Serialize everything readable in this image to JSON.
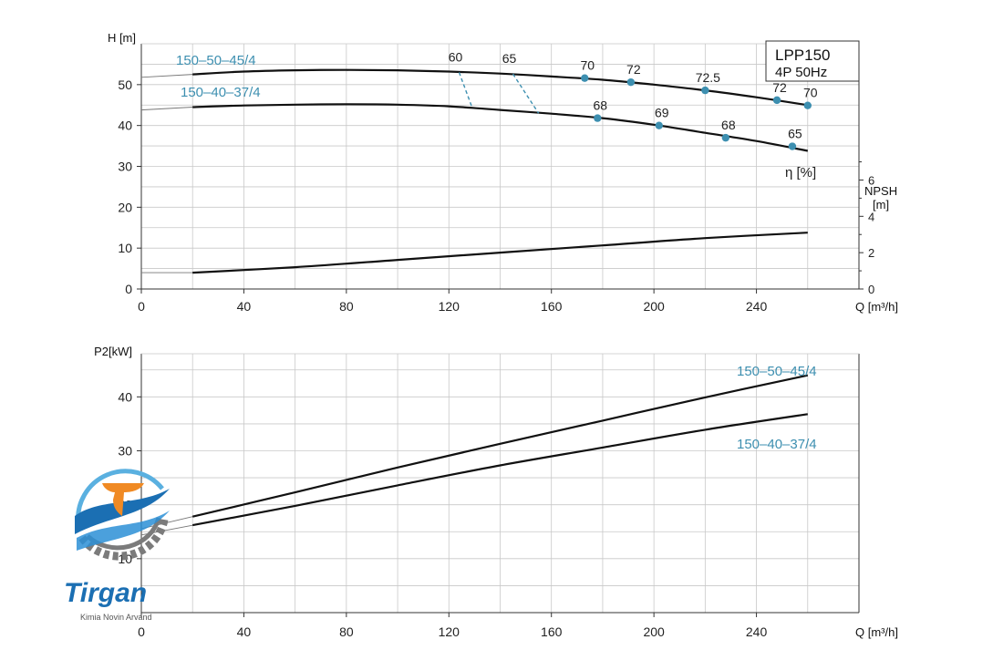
{
  "chart_data": [
    {
      "type": "line",
      "title": "",
      "model_box": {
        "line1": "LPP150",
        "line2": "4P  50Hz"
      },
      "xlabel": "Q [m³/h]",
      "ylabel": "H [m]",
      "y2label_line1": "NPSH",
      "y2label_line2": "[m]",
      "eta_label": "η  [%]",
      "xlim": [
        0,
        280
      ],
      "ylim": [
        0,
        60
      ],
      "y2lim": [
        0,
        13.5
      ],
      "x_ticks": [
        0,
        40,
        80,
        120,
        160,
        200,
        240
      ],
      "y_ticks": [
        0,
        10,
        20,
        30,
        40,
        50
      ],
      "y2_ticks": [
        0,
        2,
        4,
        6
      ],
      "grid": true,
      "series": [
        {
          "name": "150-50-45/4",
          "label_text": "150–50–45/4",
          "x": [
            20,
            40,
            60,
            80,
            100,
            120,
            140,
            160,
            180,
            200,
            220,
            240,
            260
          ],
          "y": [
            52.5,
            53.2,
            53.5,
            53.6,
            53.5,
            53.2,
            52.7,
            52.0,
            51.2,
            50.0,
            48.6,
            46.9,
            45.0
          ],
          "efficiency_points": [
            {
              "q": 173,
              "h": 51.6,
              "eta": "70"
            },
            {
              "q": 191,
              "h": 50.6,
              "eta": "72"
            },
            {
              "q": 220,
              "h": 48.6,
              "eta": "72.5"
            },
            {
              "q": 248,
              "h": 46.2,
              "eta": "72"
            },
            {
              "q": 260,
              "h": 44.9,
              "eta": "70"
            }
          ]
        },
        {
          "name": "150-40-37/4",
          "label_text": "150–40–37/4",
          "x": [
            20,
            40,
            60,
            80,
            100,
            120,
            140,
            160,
            180,
            200,
            220,
            240,
            260
          ],
          "y": [
            44.5,
            44.9,
            45.1,
            45.2,
            45.1,
            44.7,
            43.8,
            42.9,
            41.8,
            40.2,
            38.2,
            36.2,
            33.8
          ],
          "efficiency_points": [
            {
              "q": 178,
              "h": 41.8,
              "eta": "68"
            },
            {
              "q": 202,
              "h": 40.0,
              "eta": "69"
            },
            {
              "q": 228,
              "h": 37.0,
              "eta": "68"
            },
            {
              "q": 254,
              "h": 34.9,
              "eta": "65"
            }
          ]
        },
        {
          "name": "NPSH",
          "axis": "y2",
          "x": [
            20,
            60,
            100,
            140,
            180,
            220,
            260
          ],
          "y": [
            0.9,
            1.2,
            1.6,
            2.0,
            2.4,
            2.8,
            3.1
          ]
        }
      ],
      "iso_efficiency": [
        {
          "label": "60",
          "from": {
            "q": 124,
            "h": 53.0
          },
          "to": {
            "q": 129,
            "h": 44.5
          }
        },
        {
          "label": "65",
          "from": {
            "q": 145,
            "h": 52.6
          },
          "to": {
            "q": 155,
            "h": 43.0
          }
        }
      ]
    },
    {
      "type": "line",
      "title": "",
      "xlabel": "Q [m³/h]",
      "ylabel": "P2[kW]",
      "xlim": [
        0,
        280
      ],
      "ylim": [
        0,
        48
      ],
      "x_ticks": [
        0,
        40,
        80,
        120,
        160,
        200,
        240
      ],
      "y_ticks": [
        10,
        20,
        30,
        40
      ],
      "grid": true,
      "series": [
        {
          "name": "150-50-45/4",
          "label_text": "150–50–45/4",
          "x": [
            20,
            60,
            100,
            140,
            180,
            220,
            260
          ],
          "y": [
            17.8,
            22.3,
            26.9,
            31.3,
            35.6,
            39.9,
            44.0
          ]
        },
        {
          "name": "150-40-37/4",
          "label_text": "150–40–37/4",
          "x": [
            20,
            60,
            100,
            140,
            180,
            220,
            260
          ],
          "y": [
            16.2,
            19.8,
            23.6,
            27.3,
            30.6,
            33.9,
            36.8
          ]
        }
      ]
    }
  ],
  "logo": {
    "brand": "Tirgan",
    "tagline": "Kimia Novin Arvand",
    "colors": {
      "blue": "#1b6fb3",
      "orange": "#f08a24",
      "gray": "#7b7b7b",
      "light_blue": "#5ab0e0"
    }
  },
  "colors": {
    "accent": "#3d8fb0",
    "curve": "#111111",
    "grid": "#c8c8c8"
  }
}
